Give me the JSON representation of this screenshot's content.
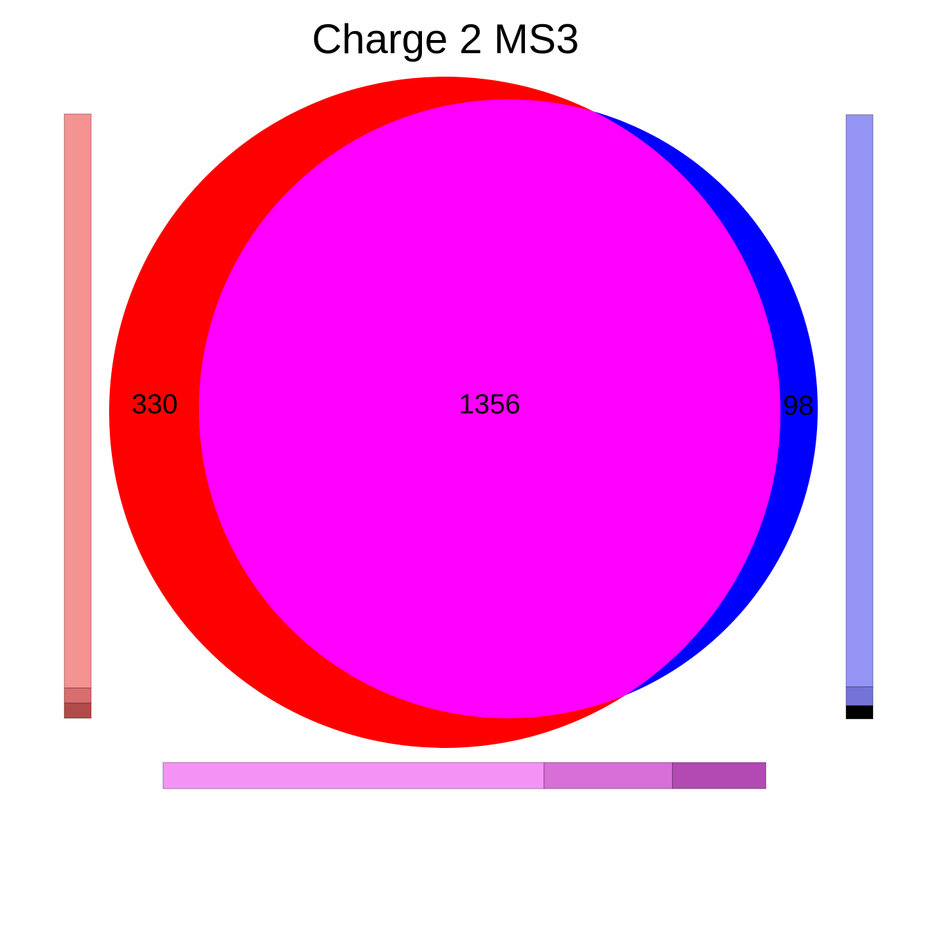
{
  "chart_data": {
    "type": "venn",
    "title": "Charge 2 MS3",
    "sets": [
      {
        "color": "#ff0000",
        "only_count": "330"
      },
      {
        "color": "#0000ff",
        "only_count": "98"
      }
    ],
    "intersection": {
      "color": "#ff00ff",
      "count": "1356"
    },
    "side_bars": {
      "left": {
        "segments": [
          {
            "fraction": 0.95,
            "color": "#f59393"
          },
          {
            "fraction": 0.025,
            "color": "#d86e6e"
          },
          {
            "fraction": 0.025,
            "color": "#b34a4a"
          }
        ]
      },
      "right": {
        "segments": [
          {
            "fraction": 0.947,
            "color": "#9494f5"
          },
          {
            "fraction": 0.031,
            "color": "#7474d8"
          },
          {
            "fraction": 0.022,
            "color": "#000000"
          }
        ]
      },
      "bottom": {
        "segments": [
          {
            "fraction": 0.632,
            "color": "#f593f5"
          },
          {
            "fraction": 0.213,
            "color": "#d86ed8"
          },
          {
            "fraction": 0.155,
            "color": "#b34ab3"
          }
        ]
      }
    }
  }
}
